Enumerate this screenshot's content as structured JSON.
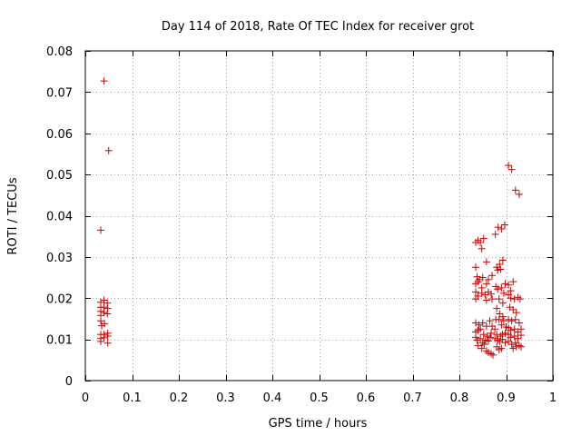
{
  "chart_data": {
    "type": "scatter",
    "title": "Day 114 of 2018, Rate Of TEC Index for receiver grot",
    "xlabel": "GPS time / hours",
    "ylabel": "ROTI / TECUs",
    "xlim": [
      0,
      1
    ],
    "ylim": [
      0,
      0.08
    ],
    "xticks": [
      0,
      0.1,
      0.2,
      0.3,
      0.4,
      0.5,
      0.6,
      0.7,
      0.8,
      0.9,
      1
    ],
    "xtick_labels": [
      "0",
      "0.1",
      "0.2",
      "0.3",
      "0.4",
      "0.5",
      "0.6",
      "0.7",
      "0.8",
      "0.9",
      "1"
    ],
    "yticks": [
      0,
      0.01,
      0.02,
      0.03,
      0.04,
      0.05,
      0.06,
      0.07,
      0.08
    ],
    "ytick_labels": [
      "0",
      "0.01",
      "0.02",
      "0.03",
      "0.04",
      "0.05",
      "0.06",
      "0.07",
      "0.08"
    ],
    "grid": true,
    "marker": "+",
    "color": "#cc0000",
    "series": [
      {
        "name": "ROTI",
        "points": [
          [
            0.033,
            0.0365
          ],
          [
            0.04,
            0.0727
          ],
          [
            0.05,
            0.0558
          ],
          [
            0.033,
            0.019
          ],
          [
            0.033,
            0.0178
          ],
          [
            0.033,
            0.0168
          ],
          [
            0.033,
            0.0158
          ],
          [
            0.033,
            0.0145
          ],
          [
            0.035,
            0.0133
          ],
          [
            0.033,
            0.0112
          ],
          [
            0.033,
            0.0102
          ],
          [
            0.033,
            0.0095
          ],
          [
            0.04,
            0.0195
          ],
          [
            0.04,
            0.0178
          ],
          [
            0.04,
            0.0165
          ],
          [
            0.041,
            0.0138
          ],
          [
            0.04,
            0.0112
          ],
          [
            0.04,
            0.0104
          ],
          [
            0.047,
            0.0188
          ],
          [
            0.048,
            0.0175
          ],
          [
            0.047,
            0.0162
          ],
          [
            0.048,
            0.0115
          ],
          [
            0.048,
            0.0108
          ],
          [
            0.048,
            0.0091
          ],
          [
            0.835,
            0.0335
          ],
          [
            0.84,
            0.034
          ],
          [
            0.845,
            0.0335
          ],
          [
            0.848,
            0.032
          ],
          [
            0.852,
            0.0345
          ],
          [
            0.835,
            0.0275
          ],
          [
            0.838,
            0.0252
          ],
          [
            0.843,
            0.0245
          ],
          [
            0.85,
            0.025
          ],
          [
            0.858,
            0.0288
          ],
          [
            0.862,
            0.0245
          ],
          [
            0.87,
            0.0255
          ],
          [
            0.835,
            0.0235
          ],
          [
            0.84,
            0.024
          ],
          [
            0.848,
            0.0225
          ],
          [
            0.858,
            0.0235
          ],
          [
            0.835,
            0.0215
          ],
          [
            0.84,
            0.0205
          ],
          [
            0.848,
            0.0212
          ],
          [
            0.855,
            0.0208
          ],
          [
            0.862,
            0.0215
          ],
          [
            0.868,
            0.021
          ],
          [
            0.835,
            0.0198
          ],
          [
            0.858,
            0.0195
          ],
          [
            0.87,
            0.0198
          ],
          [
            0.835,
            0.014
          ],
          [
            0.842,
            0.0135
          ],
          [
            0.85,
            0.014
          ],
          [
            0.858,
            0.0132
          ],
          [
            0.865,
            0.0145
          ],
          [
            0.87,
            0.0132
          ],
          [
            0.835,
            0.0118
          ],
          [
            0.84,
            0.0122
          ],
          [
            0.845,
            0.0125
          ],
          [
            0.852,
            0.0112
          ],
          [
            0.86,
            0.0108
          ],
          [
            0.868,
            0.0115
          ],
          [
            0.835,
            0.0105
          ],
          [
            0.838,
            0.0098
          ],
          [
            0.845,
            0.0102
          ],
          [
            0.85,
            0.0092
          ],
          [
            0.856,
            0.0098
          ],
          [
            0.862,
            0.0096
          ],
          [
            0.866,
            0.0105
          ],
          [
            0.84,
            0.0085
          ],
          [
            0.848,
            0.0078
          ],
          [
            0.853,
            0.0088
          ],
          [
            0.858,
            0.0072
          ],
          [
            0.862,
            0.0068
          ],
          [
            0.868,
            0.0065
          ],
          [
            0.872,
            0.0062
          ],
          [
            0.877,
            0.0355
          ],
          [
            0.883,
            0.0372
          ],
          [
            0.89,
            0.0368
          ],
          [
            0.897,
            0.0378
          ],
          [
            0.88,
            0.0275
          ],
          [
            0.886,
            0.0282
          ],
          [
            0.893,
            0.0292
          ],
          [
            0.882,
            0.0268
          ],
          [
            0.888,
            0.027
          ],
          [
            0.878,
            0.0228
          ],
          [
            0.882,
            0.0222
          ],
          [
            0.89,
            0.0225
          ],
          [
            0.898,
            0.0235
          ],
          [
            0.895,
            0.0212
          ],
          [
            0.885,
            0.0198
          ],
          [
            0.893,
            0.0188
          ],
          [
            0.88,
            0.0175
          ],
          [
            0.886,
            0.0162
          ],
          [
            0.893,
            0.0155
          ],
          [
            0.878,
            0.0148
          ],
          [
            0.885,
            0.0148
          ],
          [
            0.895,
            0.0145
          ],
          [
            0.89,
            0.0135
          ],
          [
            0.9,
            0.013
          ],
          [
            0.876,
            0.0125
          ],
          [
            0.88,
            0.0112
          ],
          [
            0.888,
            0.0108
          ],
          [
            0.892,
            0.0112
          ],
          [
            0.898,
            0.0115
          ],
          [
            0.876,
            0.0102
          ],
          [
            0.882,
            0.0098
          ],
          [
            0.886,
            0.0095
          ],
          [
            0.892,
            0.01
          ],
          [
            0.898,
            0.0092
          ],
          [
            0.88,
            0.0082
          ],
          [
            0.885,
            0.0075
          ],
          [
            0.89,
            0.0078
          ],
          [
            0.905,
            0.0522
          ],
          [
            0.912,
            0.0512
          ],
          [
            0.92,
            0.0462
          ],
          [
            0.928,
            0.0452
          ],
          [
            0.905,
            0.0232
          ],
          [
            0.915,
            0.024
          ],
          [
            0.91,
            0.0218
          ],
          [
            0.905,
            0.0208
          ],
          [
            0.91,
            0.02
          ],
          [
            0.918,
            0.0198
          ],
          [
            0.925,
            0.0202
          ],
          [
            0.93,
            0.0198
          ],
          [
            0.908,
            0.0178
          ],
          [
            0.915,
            0.0172
          ],
          [
            0.922,
            0.0165
          ],
          [
            0.905,
            0.0148
          ],
          [
            0.912,
            0.0145
          ],
          [
            0.92,
            0.0148
          ],
          [
            0.928,
            0.014
          ],
          [
            0.905,
            0.0128
          ],
          [
            0.91,
            0.0122
          ],
          [
            0.918,
            0.0125
          ],
          [
            0.925,
            0.0118
          ],
          [
            0.932,
            0.0125
          ],
          [
            0.905,
            0.0112
          ],
          [
            0.91,
            0.0105
          ],
          [
            0.918,
            0.0108
          ],
          [
            0.925,
            0.0102
          ],
          [
            0.932,
            0.011
          ],
          [
            0.905,
            0.0095
          ],
          [
            0.912,
            0.0088
          ],
          [
            0.92,
            0.0092
          ],
          [
            0.928,
            0.0085
          ],
          [
            0.915,
            0.0078
          ],
          [
            0.922,
            0.0082
          ],
          [
            0.932,
            0.0082
          ]
        ]
      }
    ]
  }
}
